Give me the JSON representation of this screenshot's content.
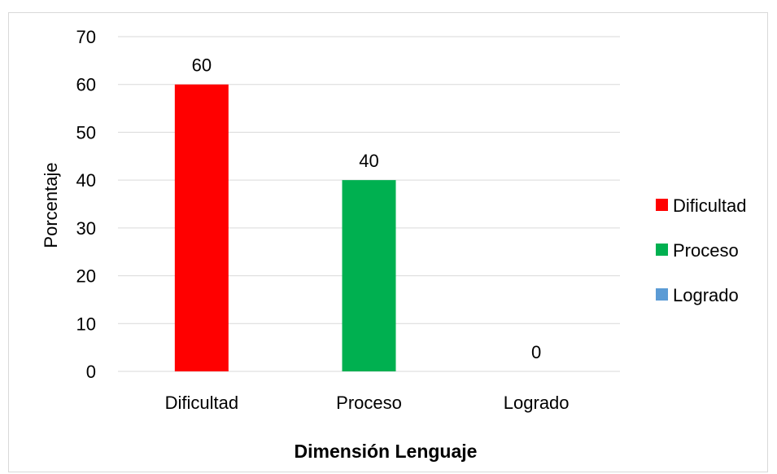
{
  "chart_data": {
    "type": "bar",
    "title": "",
    "categories": [
      "Dificultad",
      "Proceso",
      "Logrado"
    ],
    "values": [
      60,
      40,
      0
    ],
    "colors": [
      "#ff0000",
      "#00b050",
      "#5b9bd5"
    ],
    "xlabel": "Dimensión Lenguaje",
    "ylabel": "Porcentaje",
    "ylim": [
      0,
      70
    ],
    "yticks": [
      0,
      10,
      20,
      30,
      40,
      50,
      60,
      70
    ],
    "grid": true,
    "legend_position": "right",
    "legend": [
      {
        "name": "Dificultad",
        "color": "#ff0000"
      },
      {
        "name": "Proceso",
        "color": "#00b050"
      },
      {
        "name": "Logrado",
        "color": "#5b9bd5"
      }
    ]
  }
}
